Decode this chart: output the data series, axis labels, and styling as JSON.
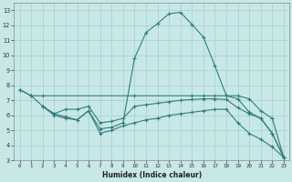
{
  "xlabel": "Humidex (Indice chaleur)",
  "ylabel": "",
  "bg_color": "#c8e8e8",
  "grid_color": "#a8cccc",
  "line_color": "#2e7d7d",
  "xlim": [
    -0.5,
    23.5
  ],
  "ylim": [
    3,
    13.5
  ],
  "xticks": [
    0,
    1,
    2,
    3,
    4,
    5,
    6,
    7,
    8,
    9,
    10,
    11,
    12,
    13,
    14,
    15,
    16,
    17,
    18,
    19,
    20,
    21,
    22,
    23
  ],
  "yticks": [
    3,
    4,
    5,
    6,
    7,
    8,
    9,
    10,
    11,
    12,
    13
  ],
  "line1_x": [
    0,
    1,
    2,
    10,
    15,
    16,
    17,
    18,
    19,
    20,
    21,
    22,
    23
  ],
  "line1_y": [
    7.7,
    7.3,
    7.3,
    7.3,
    7.3,
    7.3,
    7.3,
    7.3,
    7.3,
    7.1,
    6.3,
    5.8,
    3.2
  ],
  "line2_x": [
    0,
    1,
    2,
    3,
    4,
    5,
    6,
    7,
    8,
    9,
    10,
    11,
    12,
    13,
    14,
    15,
    16,
    17,
    18,
    19,
    20,
    21,
    22,
    23
  ],
  "line2_y": [
    7.7,
    7.3,
    6.6,
    6.0,
    5.8,
    5.7,
    6.3,
    5.1,
    5.2,
    5.5,
    9.8,
    11.5,
    12.1,
    12.75,
    12.85,
    12.05,
    11.2,
    9.3,
    7.3,
    7.1,
    6.2,
    5.8,
    4.8,
    3.2
  ],
  "line3_x": [
    2,
    3,
    4,
    5,
    6,
    7,
    8,
    9,
    10,
    11,
    12,
    13,
    14,
    15,
    16,
    17,
    18,
    19,
    20,
    21,
    22,
    23
  ],
  "line3_y": [
    6.6,
    6.1,
    6.4,
    6.4,
    6.6,
    5.5,
    5.6,
    5.8,
    6.6,
    6.7,
    6.8,
    6.9,
    7.0,
    7.05,
    7.1,
    7.1,
    7.05,
    6.5,
    6.1,
    5.8,
    4.8,
    3.2
  ],
  "line4_x": [
    2,
    3,
    4,
    5,
    6,
    7,
    8,
    9,
    10,
    11,
    12,
    13,
    14,
    15,
    16,
    17,
    18,
    19,
    20,
    21,
    22,
    23
  ],
  "line4_y": [
    6.6,
    6.1,
    5.9,
    5.7,
    6.3,
    4.8,
    5.0,
    5.3,
    5.5,
    5.7,
    5.8,
    6.0,
    6.1,
    6.2,
    6.3,
    6.4,
    6.4,
    5.5,
    4.8,
    4.4,
    3.9,
    3.2
  ]
}
